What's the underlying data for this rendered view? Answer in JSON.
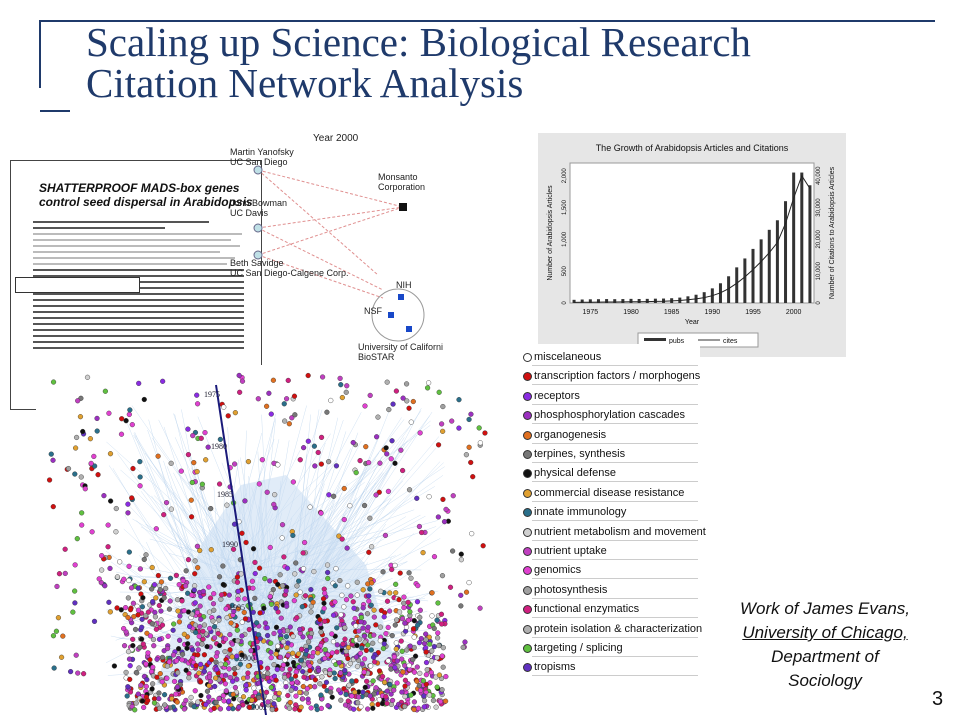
{
  "slide": {
    "title_line1": "Scaling up Science: Biological Research",
    "title_line2": "Citation Network Analysis",
    "page_number": "3",
    "credit": [
      "Work of James Evans,",
      "University of Chicago,",
      "Department of",
      "Sociology"
    ],
    "colors": {
      "title": "#1f3a6b",
      "network_edges": "#a9c8e8",
      "year_axis": "#1a1a7a"
    }
  },
  "paper_excerpt": {
    "headline_line1": "SHATTERPROOF MADS-box genes",
    "headline_line2": "control seed dispersal in Arabidopsis"
  },
  "network_diagram": {
    "year": "Year 2000",
    "nodes": [
      {
        "name": "Martin Yanofsky",
        "org": "UC San Diego"
      },
      {
        "name": "John Bowman",
        "org": "UC Davis"
      },
      {
        "name": "Beth Savidge",
        "org": "UC San Diego-Calgene Corp."
      },
      {
        "name": "Monsanto",
        "org": "Corporation"
      },
      {
        "name": "NIH",
        "org": ""
      },
      {
        "name": "NSF",
        "org": ""
      },
      {
        "name": "University of Californi",
        "org": "BioSTAR"
      }
    ]
  },
  "chart_data": {
    "type": "bar",
    "title": "The Growth of Arabidopsis Articles and Citations",
    "xlabel": "Year",
    "ylabel": "Number of Arabidopsis Articles",
    "y2label": "Number of Citations to Arabidopsis Articles",
    "xticks": [
      "1975",
      "1980",
      "1985",
      "1990",
      "1995",
      "2000"
    ],
    "yticks": [
      "0",
      "500",
      "1,000",
      "1,500",
      "2,000"
    ],
    "y2ticks": [
      "0",
      "10,000",
      "20,000",
      "30,000",
      "40,000"
    ],
    "ylim": [
      0,
      2200
    ],
    "y2lim": [
      0,
      44000
    ],
    "categories": [
      1973,
      1974,
      1975,
      1976,
      1977,
      1978,
      1979,
      1980,
      1981,
      1982,
      1983,
      1984,
      1985,
      1986,
      1987,
      1988,
      1989,
      1990,
      1991,
      1992,
      1993,
      1994,
      1995,
      1996,
      1997,
      1998,
      1999,
      2000,
      2001,
      2002
    ],
    "series": [
      {
        "name": "pubs",
        "style": "bars",
        "values": [
          50,
          55,
          58,
          60,
          62,
          60,
          62,
          65,
          63,
          65,
          68,
          70,
          75,
          85,
          105,
          130,
          170,
          230,
          310,
          420,
          560,
          700,
          850,
          1000,
          1150,
          1300,
          1600,
          2050,
          2050,
          1850
        ]
      },
      {
        "name": "cites",
        "style": "line",
        "values": [
          200,
          220,
          250,
          280,
          300,
          320,
          350,
          380,
          400,
          450,
          500,
          550,
          650,
          800,
          1000,
          1300,
          1700,
          2300,
          3200,
          4500,
          6200,
          8200,
          10500,
          13000,
          15800,
          19000,
          25000,
          33000,
          40000,
          36000
        ]
      }
    ],
    "legend": {
      "position": "bottom",
      "labels": [
        "pubs",
        "cites"
      ]
    }
  },
  "big_network": {
    "years": [
      "1975",
      "1980",
      "1985",
      "1990",
      "1995",
      "2000",
      "2002"
    ]
  },
  "legend": {
    "items": [
      {
        "label": "miscelaneous",
        "color": "#ffffff"
      },
      {
        "label": "transcription factors / morphogens",
        "color": "#d01010"
      },
      {
        "label": "receptors",
        "color": "#8a2be2"
      },
      {
        "label": "phosphosphorylation cascades",
        "color": "#9b30c0"
      },
      {
        "label": "organogenesis",
        "color": "#e07020"
      },
      {
        "label": "terpines, synthesis",
        "color": "#777777"
      },
      {
        "label": "physical defense",
        "color": "#111111"
      },
      {
        "label": "commercial disease resistance",
        "color": "#e0a030"
      },
      {
        "label": "innate immunology",
        "color": "#2a6f8a"
      },
      {
        "label": "nutrient metabolism and movement",
        "color": "#d0d0d0"
      },
      {
        "label": "nutrient uptake",
        "color": "#c040c0"
      },
      {
        "label": "genomics",
        "color": "#e040d0"
      },
      {
        "label": "photosynthesis",
        "color": "#a0a0a0"
      },
      {
        "label": "functional enzymatics",
        "color": "#d02080"
      },
      {
        "label": "protein isolation & characterization",
        "color": "#b0b0b0"
      },
      {
        "label": "targeting / splicing",
        "color": "#60c040"
      },
      {
        "label": "tropisms",
        "color": "#6030c0"
      }
    ]
  }
}
